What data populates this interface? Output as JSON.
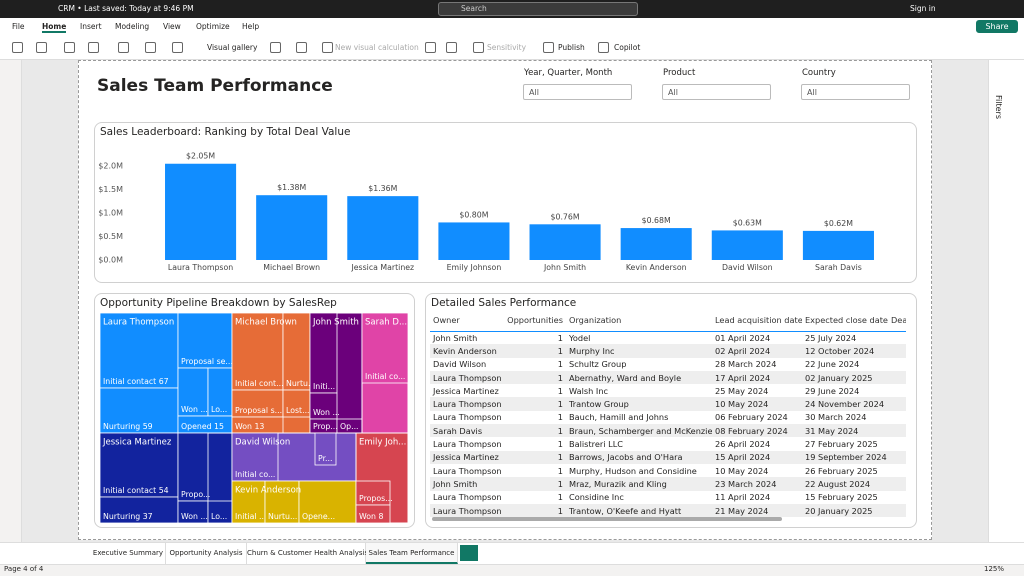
{
  "title_bar": {
    "file": "CRM • Last saved: Today at 9:46 PM",
    "search": "Search",
    "sign_in": "Sign in"
  },
  "ribbon": {
    "tabs": [
      "File",
      "Home",
      "Insert",
      "Modeling",
      "View",
      "Optimize",
      "Help"
    ],
    "buttons": [
      "Visual gallery",
      "New visual calculation",
      "Sensitivity",
      "Publish",
      "Copilot"
    ],
    "share": "Share"
  },
  "filters_pane": "Filters",
  "report": {
    "title": "Sales Team Performance",
    "slicers": [
      {
        "label": "Year, Quarter, Month",
        "value": "All"
      },
      {
        "label": "Product",
        "value": "All"
      },
      {
        "label": "Country",
        "value": "All"
      }
    ]
  },
  "chart_data": {
    "type": "bar",
    "title": "Sales Leaderboard: Ranking by Total Deal Value",
    "categories": [
      "Laura Thompson",
      "Michael Brown",
      "Jessica Martinez",
      "Emily Johnson",
      "John Smith",
      "Kevin Anderson",
      "David Wilson",
      "Sarah Davis"
    ],
    "values": [
      2.05,
      1.38,
      1.36,
      0.8,
      0.76,
      0.68,
      0.63,
      0.62
    ],
    "value_labels": [
      "$2.05M",
      "$1.38M",
      "$1.36M",
      "$0.80M",
      "$0.76M",
      "$0.68M",
      "$0.63M",
      "$0.62M"
    ],
    "color": "#118DFF",
    "ylim": [
      0,
      2.3
    ],
    "yticks": [
      {
        "value": 0,
        "label": "$0.0M"
      },
      {
        "value": 0.5,
        "label": "$0.5M"
      },
      {
        "value": 1,
        "label": "$1.0M"
      },
      {
        "value": 1.5,
        "label": "$1.5M"
      },
      {
        "value": 2,
        "label": "$2.0M"
      }
    ],
    "grid": false
  },
  "treemap": {
    "title": "Opportunity Pipeline Breakdown by SalesRep",
    "groups": [
      {
        "name": "Laura Thompson",
        "color": "#118DFF",
        "tiles": [
          "Initial contact 67",
          "Nurturing 59",
          "Proposal se...",
          "Won ...",
          "Lo...",
          "Opened 15"
        ]
      },
      {
        "name": "Michael Brown",
        "color": "#E66C37",
        "tiles": [
          "Initial cont...",
          "Nurtu...",
          "Proposal s...",
          "Lost...",
          "Won 13"
        ]
      },
      {
        "name": "John Smith",
        "color": "#6B007B",
        "tiles": [
          "Initi...",
          "Won ...",
          "Prop...",
          "Op..."
        ]
      },
      {
        "name": "Sarah D...",
        "color": "#E044A7",
        "tiles": [
          "Initial co..."
        ]
      },
      {
        "name": "Jessica Martinez",
        "color": "#12239E",
        "tiles": [
          "Initial contact 54",
          "Nurturing 37",
          "Propo...",
          "Won ...",
          "Lo..."
        ]
      },
      {
        "name": "David Wilson",
        "color": "#744EC2",
        "tiles": [
          "Initial co...",
          "Pr..."
        ]
      },
      {
        "name": "Kevin Anderson",
        "color": "#D9B300",
        "tiles": [
          "Initial ...",
          "Nurtu...",
          "Opene..."
        ]
      },
      {
        "name": "Emily Joh...",
        "color": "#D64550",
        "tiles": [
          "Propos...",
          "Won 8"
        ]
      }
    ]
  },
  "table": {
    "title": "Detailed Sales Performance",
    "columns": [
      "Owner",
      "Opportunities",
      "Organization",
      "Lead acquisition date",
      "Expected close date",
      "Dea"
    ],
    "rows": [
      [
        "John Smith",
        "1",
        "Yodel",
        "01 April 2024",
        "25 July 2024"
      ],
      [
        "Kevin Anderson",
        "1",
        "Murphy Inc",
        "02 April 2024",
        "12 October 2024"
      ],
      [
        "David Wilson",
        "1",
        "Schultz Group",
        "28 March 2024",
        "22 June 2024"
      ],
      [
        "Laura Thompson",
        "1",
        "Abernathy, Ward and Boyle",
        "17 April 2024",
        "02 January 2025"
      ],
      [
        "Jessica Martinez",
        "1",
        "Walsh Inc",
        "25 May 2024",
        "29 June 2024"
      ],
      [
        "Laura Thompson",
        "1",
        "Trantow Group",
        "10 May 2024",
        "24 November 2024"
      ],
      [
        "Laura Thompson",
        "1",
        "Bauch, Hamill and Johns",
        "06 February 2024",
        "30 March 2024"
      ],
      [
        "Sarah Davis",
        "1",
        "Braun, Schamberger and McKenzie",
        "08 February 2024",
        "31 May 2024"
      ],
      [
        "Laura Thompson",
        "1",
        "Balistreri LLC",
        "26 April 2024",
        "27 February 2025"
      ],
      [
        "Jessica Martinez",
        "1",
        "Barrows, Jacobs and O'Hara",
        "15 April 2024",
        "19 September 2024"
      ],
      [
        "Laura Thompson",
        "1",
        "Murphy, Hudson and Considine",
        "10 May 2024",
        "26 February 2025"
      ],
      [
        "John Smith",
        "1",
        "Mraz, Murazik and Kling",
        "23 March 2024",
        "22 August 2024"
      ],
      [
        "Laura Thompson",
        "1",
        "Considine Inc",
        "11 April 2024",
        "15 February 2025"
      ],
      [
        "Laura Thompson",
        "1",
        "Trantow, O'Keefe and Hyatt",
        "21 May 2024",
        "20 January 2025"
      ]
    ]
  },
  "page_tabs": [
    "Executive Summary",
    "Opportunity Analysis",
    "Churn & Customer Health Analysis",
    "Sales Team Performance"
  ],
  "status_bar": {
    "page": "Page 4 of 4",
    "zoom": "125%"
  }
}
